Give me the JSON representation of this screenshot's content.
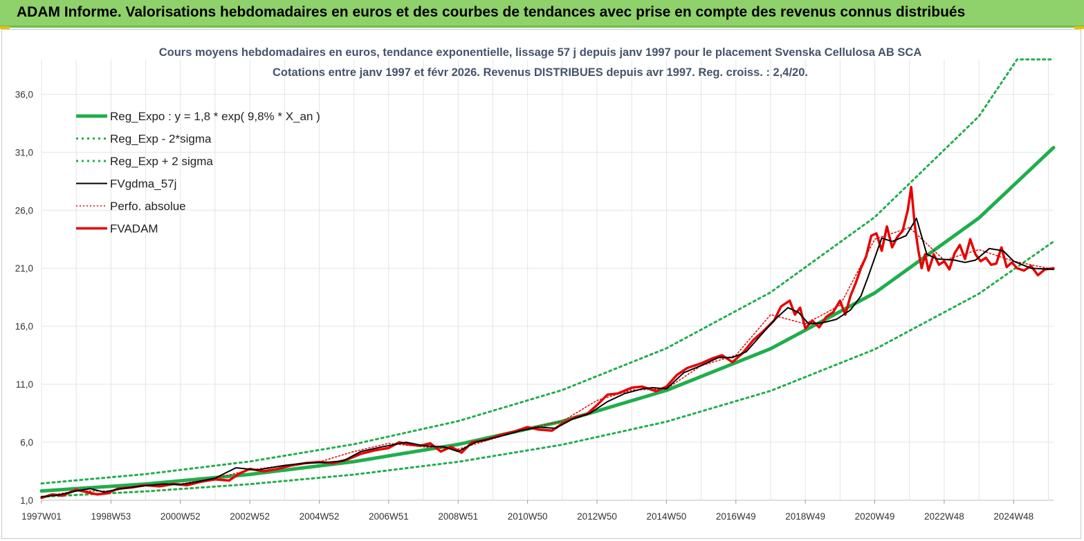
{
  "banner": {
    "title": "ADAM Informe. Valorisations hebdomadaires en euros et des courbes de tendances avec prise en compte des revenus connus distribués"
  },
  "colors": {
    "banner_bg": "#8fd16a",
    "reg_expo": "#1fae4b",
    "sigma_bands": "#1fae4b",
    "fvgdma": "#000000",
    "perfo": "#e00000",
    "fvadam": "#e60000",
    "grid": "#e4e4e4",
    "title_text": "#44546a"
  },
  "chart_data": {
    "type": "line",
    "title": "Cours moyens hebdomadaires en euros, tendance exponentielle, lissage 57 j depuis janv 1997 pour le placement Svenska Cellulosa AB SCA",
    "subtitle": "Cotations entre janv 1997 et févr 2026. Revenus DISTRIBUES depuis avr 1997. Reg. croiss. : 2,4/20.",
    "xlabel": "",
    "ylabel": "",
    "x_range": [
      1997.0,
      2026.15
    ],
    "y_range": [
      1.0,
      39.0
    ],
    "y_ticks": [
      1.0,
      6.0,
      11.0,
      16.0,
      21.0,
      26.0,
      31.0,
      36.0
    ],
    "y_tick_labels": [
      "1,0",
      "6,0",
      "11,0",
      "16,0",
      "21,0",
      "26,0",
      "31,0",
      "36,0"
    ],
    "x_ticks": [
      1997.0,
      1999.0,
      2001.0,
      2003.0,
      2005.0,
      2007.0,
      2009.0,
      2011.0,
      2013.0,
      2015.0,
      2017.0,
      2019.0,
      2021.0,
      2023.0,
      2025.0
    ],
    "x_tick_labels": [
      "1997W01",
      "1998W53",
      "2000W52",
      "2002W52",
      "2004W52",
      "2006W51",
      "2008W51",
      "2010W50",
      "2012W50",
      "2014W50",
      "2016W49",
      "2018W49",
      "2020W49",
      "2022W48",
      "2024W48"
    ],
    "grid": true,
    "legend_position": "top-left",
    "series": [
      {
        "name": "Reg_Expo : y = 1,8 * exp( 9,8% *  X_an )",
        "style": "solid-thick",
        "x": [
          1997.0,
          2000.0,
          2003.0,
          2006.0,
          2009.0,
          2012.0,
          2015.0,
          2018.0,
          2021.0,
          2024.0,
          2026.15
        ],
        "y": [
          1.8,
          2.4,
          3.23,
          4.33,
          5.81,
          7.8,
          10.47,
          14.06,
          18.87,
          25.33,
          31.4
        ]
      },
      {
        "name": "Reg_Exp - 2*sigma",
        "style": "dotted",
        "x": [
          1997.0,
          2000.0,
          2003.0,
          2006.0,
          2009.0,
          2012.0,
          2015.0,
          2018.0,
          2021.0,
          2024.0,
          2026.15
        ],
        "y": [
          1.3,
          1.76,
          2.39,
          3.21,
          4.31,
          5.79,
          7.77,
          10.43,
          14.01,
          18.8,
          23.3
        ]
      },
      {
        "name": "Reg_Exp + 2 sigma",
        "style": "dotted",
        "x": [
          1997.0,
          2000.0,
          2003.0,
          2006.0,
          2009.0,
          2012.0,
          2015.0,
          2018.0,
          2021.0,
          2024.0,
          2025.1,
          2026.15
        ],
        "y": [
          2.45,
          3.25,
          4.34,
          5.83,
          7.82,
          10.5,
          14.1,
          18.92,
          25.4,
          34.1,
          39.0,
          39.0
        ]
      },
      {
        "name": "FVgdma_57j",
        "style": "solid-thin",
        "x": [
          1997.0,
          1997.5,
          1998.0,
          1998.4,
          1998.8,
          1999.3,
          1999.8,
          2000.5,
          2001.0,
          2001.5,
          2002.0,
          2002.6,
          2003.2,
          2004.0,
          2004.6,
          2005.2,
          2005.7,
          2006.2,
          2006.8,
          2007.5,
          2008.0,
          2008.6,
          2009.0,
          2009.5,
          2010.2,
          2010.8,
          2011.3,
          2011.8,
          2012.3,
          2012.8,
          2013.3,
          2013.8,
          2014.3,
          2014.6,
          2015.0,
          2015.5,
          2016.0,
          2016.5,
          2016.9,
          2017.3,
          2017.8,
          2018.2,
          2018.5,
          2018.8,
          2019.1,
          2019.5,
          2019.9,
          2020.3,
          2020.6,
          2020.8,
          2021.2,
          2021.5,
          2021.9,
          2022.2,
          2022.5,
          2022.8,
          2023.3,
          2023.6,
          2023.9,
          2024.3,
          2024.7,
          2025.0,
          2025.5,
          2026.15
        ],
        "y": [
          1.3,
          1.45,
          1.8,
          2.0,
          1.7,
          2.0,
          2.2,
          2.4,
          2.35,
          2.6,
          2.9,
          3.8,
          3.6,
          4.0,
          4.2,
          4.25,
          4.4,
          5.2,
          5.6,
          6.0,
          5.7,
          5.6,
          5.2,
          6.0,
          6.5,
          7.0,
          7.3,
          7.2,
          8.0,
          8.5,
          9.5,
          10.2,
          10.6,
          10.7,
          10.6,
          12.0,
          12.6,
          13.3,
          13.3,
          13.8,
          15.5,
          16.8,
          17.6,
          17.2,
          16.2,
          16.3,
          16.6,
          17.4,
          18.6,
          20.2,
          23.6,
          23.3,
          23.8,
          25.3,
          22.2,
          21.8,
          21.7,
          21.5,
          21.7,
          22.7,
          22.5,
          21.6,
          21.0,
          20.9
        ]
      },
      {
        "name": "Perfo. absolue",
        "style": "dotted-red",
        "x": [
          1997.0,
          1998.0,
          1999.0,
          2000.0,
          2001.0,
          2002.0,
          2003.0,
          2004.0,
          2005.0,
          2006.0,
          2007.0,
          2008.0,
          2009.0,
          2010.0,
          2011.0,
          2012.0,
          2013.0,
          2014.0,
          2015.0,
          2016.0,
          2017.0,
          2018.0,
          2019.0,
          2020.0,
          2021.0,
          2022.0,
          2023.0,
          2024.0,
          2025.0,
          2026.15
        ],
        "y": [
          1.3,
          1.8,
          1.8,
          2.3,
          2.4,
          2.9,
          3.6,
          4.0,
          4.3,
          5.2,
          5.9,
          5.6,
          5.4,
          6.3,
          7.2,
          7.8,
          9.6,
          10.5,
          10.6,
          12.6,
          13.5,
          17.0,
          16.2,
          17.8,
          23.5,
          24.5,
          21.7,
          22.6,
          21.6,
          20.9
        ]
      },
      {
        "name": "FVADAM",
        "style": "solid-red",
        "x": [
          1997.0,
          1997.3,
          1997.6,
          1998.0,
          1998.3,
          1998.6,
          1998.9,
          1999.2,
          1999.6,
          2000.0,
          2000.4,
          2000.8,
          2001.2,
          2001.6,
          2002.0,
          2002.4,
          2002.7,
          2003.0,
          2003.4,
          2003.8,
          2004.2,
          2004.6,
          2005.0,
          2005.4,
          2005.8,
          2006.2,
          2006.6,
          2007.0,
          2007.3,
          2007.6,
          2007.9,
          2008.2,
          2008.5,
          2008.8,
          2009.1,
          2009.4,
          2009.8,
          2010.2,
          2010.6,
          2011.0,
          2011.3,
          2011.7,
          2012.0,
          2012.4,
          2012.7,
          2013.0,
          2013.3,
          2013.6,
          2014.0,
          2014.3,
          2014.7,
          2015.0,
          2015.3,
          2015.6,
          2016.0,
          2016.3,
          2016.6,
          2016.9,
          2017.2,
          2017.5,
          2017.8,
          2018.1,
          2018.3,
          2018.55,
          2018.7,
          2018.85,
          2019.0,
          2019.2,
          2019.4,
          2019.6,
          2019.8,
          2020.0,
          2020.15,
          2020.3,
          2020.45,
          2020.6,
          2020.75,
          2020.9,
          2021.05,
          2021.2,
          2021.35,
          2021.5,
          2021.65,
          2021.8,
          2021.95,
          2022.05,
          2022.15,
          2022.25,
          2022.35,
          2022.45,
          2022.55,
          2022.7,
          2022.85,
          2023.0,
          2023.15,
          2023.3,
          2023.45,
          2023.6,
          2023.75,
          2023.9,
          2024.05,
          2024.2,
          2024.35,
          2024.5,
          2024.65,
          2024.8,
          2024.95,
          2025.1,
          2025.3,
          2025.5,
          2025.7,
          2025.9,
          2026.15
        ],
        "y": [
          1.2,
          1.5,
          1.4,
          1.9,
          1.7,
          1.5,
          1.6,
          2.0,
          2.1,
          2.3,
          2.2,
          2.4,
          2.3,
          2.6,
          2.8,
          2.7,
          3.3,
          3.7,
          3.5,
          3.7,
          4.0,
          4.2,
          4.3,
          4.2,
          4.5,
          5.0,
          5.3,
          5.5,
          6.0,
          5.8,
          5.7,
          5.9,
          5.2,
          5.6,
          5.1,
          6.0,
          6.2,
          6.6,
          6.9,
          7.3,
          7.1,
          7.0,
          7.6,
          8.2,
          8.4,
          9.2,
          10.1,
          10.2,
          10.7,
          10.8,
          10.4,
          10.8,
          11.8,
          12.4,
          12.8,
          13.2,
          13.5,
          12.9,
          13.7,
          14.8,
          15.6,
          16.5,
          17.7,
          18.2,
          17.0,
          17.6,
          15.8,
          16.5,
          15.9,
          16.8,
          17.2,
          18.2,
          17.0,
          18.6,
          19.7,
          21.0,
          22.0,
          23.8,
          24.0,
          22.5,
          24.6,
          22.8,
          23.7,
          24.2,
          26.0,
          28.0,
          24.8,
          22.6,
          21.0,
          22.2,
          20.8,
          22.2,
          21.3,
          21.6,
          20.9,
          22.3,
          23.0,
          21.8,
          23.5,
          22.2,
          21.6,
          21.9,
          21.3,
          21.4,
          22.8,
          21.1,
          21.5,
          21.0,
          20.8,
          21.2,
          20.4,
          20.9,
          21.0
        ]
      }
    ]
  }
}
